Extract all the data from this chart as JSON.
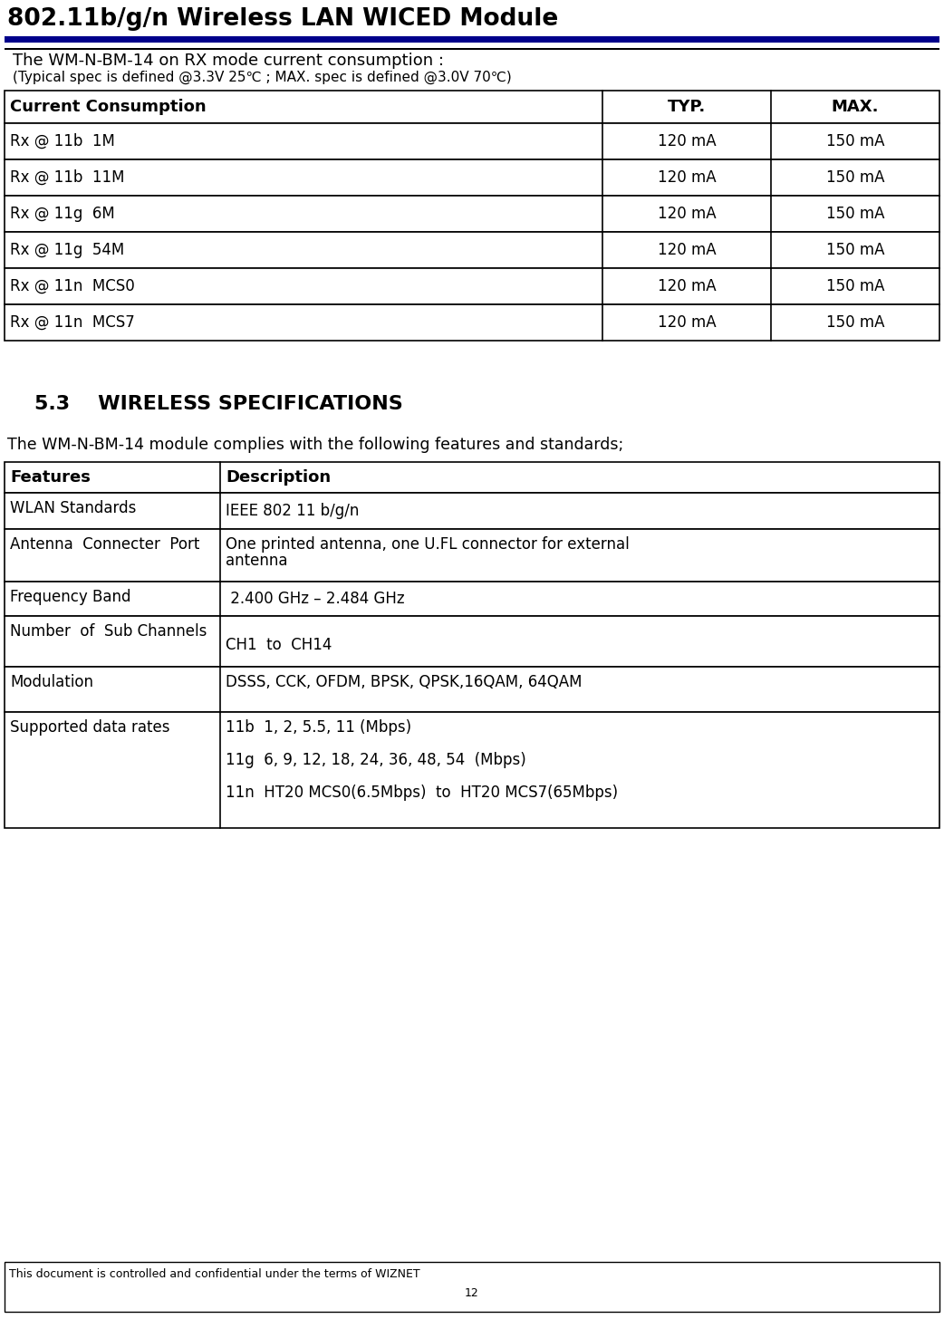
{
  "title": "802.11b/g/n Wireless LAN WICED Module",
  "header_line_color_blue": "#00008B",
  "header_line_color_black": "#000000",
  "rx_intro_line1": "The WM-N-BM-14 on RX mode current consumption :",
  "rx_intro_line2": "(Typical spec is defined @3.3V 25℃ ; MAX. spec is defined @3.0V 70℃)",
  "rx_table_headers": [
    "Current Consumption",
    "TYP.",
    "MAX."
  ],
  "rx_table_rows": [
    [
      "Rx @ 11b  1M",
      "120 mA",
      "150 mA"
    ],
    [
      "Rx @ 11b  11M",
      "120 mA",
      "150 mA"
    ],
    [
      "Rx @ 11g  6M",
      "120 mA",
      "150 mA"
    ],
    [
      "Rx @ 11g  54M",
      "120 mA",
      "150 mA"
    ],
    [
      "Rx @ 11n  MCS0",
      "120 mA",
      "150 mA"
    ],
    [
      "Rx @ 11n  MCS7",
      "120 mA",
      "150 mA"
    ]
  ],
  "section_label": "5.3",
  "section_title": "WIRELESS SPECIFICATIONS",
  "wireless_intro": "The WM-N-BM-14 module complies with the following features and standards;",
  "wireless_table_headers": [
    "Features",
    "Description"
  ],
  "wireless_table_col0": [
    "WLAN Standards",
    "Antenna  Connecter  Port",
    "Frequency Band",
    "Number  of  Sub Channels",
    "Modulation",
    "Supported data rates"
  ],
  "wireless_table_col1_line1": [
    "IEEE 802 11 b/g/n",
    "One printed antenna, one U.FL connector for external",
    " 2.400 GHz – 2.484 GHz",
    "",
    "DSSS, CCK, OFDM, BPSK, QPSK,16QAM, 64QAM",
    "11b  1, 2, 5.5, 11 (Mbps)"
  ],
  "wireless_table_col1_line2": [
    "",
    "antenna",
    "",
    "CH1  to  CH14",
    "",
    ""
  ],
  "wireless_table_col1_line3": [
    "",
    "",
    "",
    "",
    "",
    "11g  6, 9, 12, 18, 24, 36, 48, 54  (Mbps)"
  ],
  "wireless_table_col1_line4": [
    "",
    "",
    "",
    "",
    "",
    ""
  ],
  "wireless_table_col1_line5": [
    "",
    "",
    "",
    "",
    "",
    "11n  HT20 MCS0(6.5Mbps)  to  HT20 MCS7(65Mbps)"
  ],
  "footer_text1": "This document is controlled and confidential under the terms of WIZNET",
  "footer_text2": "12",
  "footer_text3": ".",
  "bg_color": "#FFFFFF",
  "text_color": "#000000",
  "title_fontsize": 19,
  "intro_fontsize1": 13,
  "intro_fontsize2": 11,
  "table_fontsize": 12,
  "header_fontsize": 13,
  "section_fontsize": 16,
  "footer_fontsize": 9
}
